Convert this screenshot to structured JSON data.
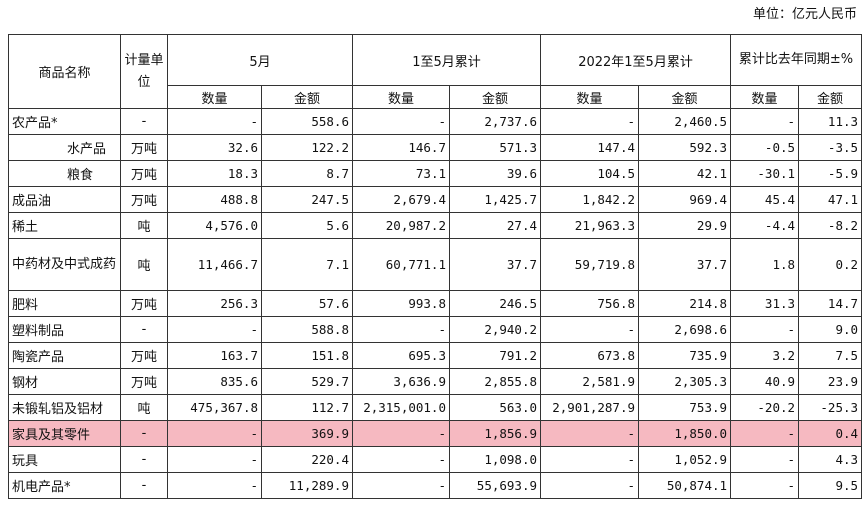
{
  "unit_note": "单位：亿元人民币",
  "headers": {
    "name": "商品名称",
    "unit": "计量单位",
    "may": "5月",
    "jan_may": "1至5月累计",
    "jan_may_2022": "2022年1至5月累计",
    "yoy": "累计比去年同期±%",
    "qty": "数量",
    "amt": "金额"
  },
  "rows": [
    {
      "name": "农产品*",
      "unit": "-",
      "may_qty": "-",
      "may_amt": "558.6",
      "cum_qty": "-",
      "cum_amt": "2,737.6",
      "prev_qty": "-",
      "prev_amt": "2,460.5",
      "yoy_qty": "-",
      "yoy_amt": "11.3"
    },
    {
      "name": "水产品",
      "unit": "万吨",
      "may_qty": "32.6",
      "may_amt": "122.2",
      "cum_qty": "146.7",
      "cum_amt": "571.3",
      "prev_qty": "147.4",
      "prev_amt": "592.3",
      "yoy_qty": "-0.5",
      "yoy_amt": "-3.5"
    },
    {
      "name": "粮食",
      "unit": "万吨",
      "may_qty": "18.3",
      "may_amt": "8.7",
      "cum_qty": "73.1",
      "cum_amt": "39.6",
      "prev_qty": "104.5",
      "prev_amt": "42.1",
      "yoy_qty": "-30.1",
      "yoy_amt": "-5.9"
    },
    {
      "name": "成品油",
      "unit": "万吨",
      "may_qty": "488.8",
      "may_amt": "247.5",
      "cum_qty": "2,679.4",
      "cum_amt": "1,425.7",
      "prev_qty": "1,842.2",
      "prev_amt": "969.4",
      "yoy_qty": "45.4",
      "yoy_amt": "47.1"
    },
    {
      "name": "稀土",
      "unit": "吨",
      "may_qty": "4,576.0",
      "may_amt": "5.6",
      "cum_qty": "20,987.2",
      "cum_amt": "27.4",
      "prev_qty": "21,963.3",
      "prev_amt": "29.9",
      "yoy_qty": "-4.4",
      "yoy_amt": "-8.2"
    },
    {
      "name": "中药材及中式成药",
      "unit": "吨",
      "may_qty": "11,466.7",
      "may_amt": "7.1",
      "cum_qty": "60,771.1",
      "cum_amt": "37.7",
      "prev_qty": "59,719.8",
      "prev_amt": "37.7",
      "yoy_qty": "1.8",
      "yoy_amt": "0.2"
    },
    {
      "name": "肥料",
      "unit": "万吨",
      "may_qty": "256.3",
      "may_amt": "57.6",
      "cum_qty": "993.8",
      "cum_amt": "246.5",
      "prev_qty": "756.8",
      "prev_amt": "214.8",
      "yoy_qty": "31.3",
      "yoy_amt": "14.7"
    },
    {
      "name": "塑料制品",
      "unit": "-",
      "may_qty": "-",
      "may_amt": "588.8",
      "cum_qty": "-",
      "cum_amt": "2,940.2",
      "prev_qty": "-",
      "prev_amt": "2,698.6",
      "yoy_qty": "-",
      "yoy_amt": "9.0"
    },
    {
      "name": "陶瓷产品",
      "unit": "万吨",
      "may_qty": "163.7",
      "may_amt": "151.8",
      "cum_qty": "695.3",
      "cum_amt": "791.2",
      "prev_qty": "673.8",
      "prev_amt": "735.9",
      "yoy_qty": "3.2",
      "yoy_amt": "7.5"
    },
    {
      "name": "钢材",
      "unit": "万吨",
      "may_qty": "835.6",
      "may_amt": "529.7",
      "cum_qty": "3,636.9",
      "cum_amt": "2,855.8",
      "prev_qty": "2,581.9",
      "prev_amt": "2,305.3",
      "yoy_qty": "40.9",
      "yoy_amt": "23.9"
    },
    {
      "name": "未锻轧铝及铝材",
      "unit": "吨",
      "may_qty": "475,367.8",
      "may_amt": "112.7",
      "cum_qty": "2,315,001.0",
      "cum_amt": "563.0",
      "prev_qty": "2,901,287.9",
      "prev_amt": "753.9",
      "yoy_qty": "-20.2",
      "yoy_amt": "-25.3"
    },
    {
      "name": "家具及其零件",
      "unit": "-",
      "may_qty": "-",
      "may_amt": "369.9",
      "cum_qty": "-",
      "cum_amt": "1,856.9",
      "prev_qty": "-",
      "prev_amt": "1,850.0",
      "yoy_qty": "-",
      "yoy_amt": "0.4"
    },
    {
      "name": "玩具",
      "unit": "-",
      "may_qty": "-",
      "may_amt": "220.4",
      "cum_qty": "-",
      "cum_amt": "1,098.0",
      "prev_qty": "-",
      "prev_amt": "1,052.9",
      "yoy_qty": "-",
      "yoy_amt": "4.3"
    },
    {
      "name": "机电产品*",
      "unit": "-",
      "may_qty": "-",
      "may_amt": "11,289.9",
      "cum_qty": "-",
      "cum_amt": "55,693.9",
      "prev_qty": "-",
      "prev_amt": "50,874.1",
      "yoy_qty": "-",
      "yoy_amt": "9.5"
    }
  ]
}
